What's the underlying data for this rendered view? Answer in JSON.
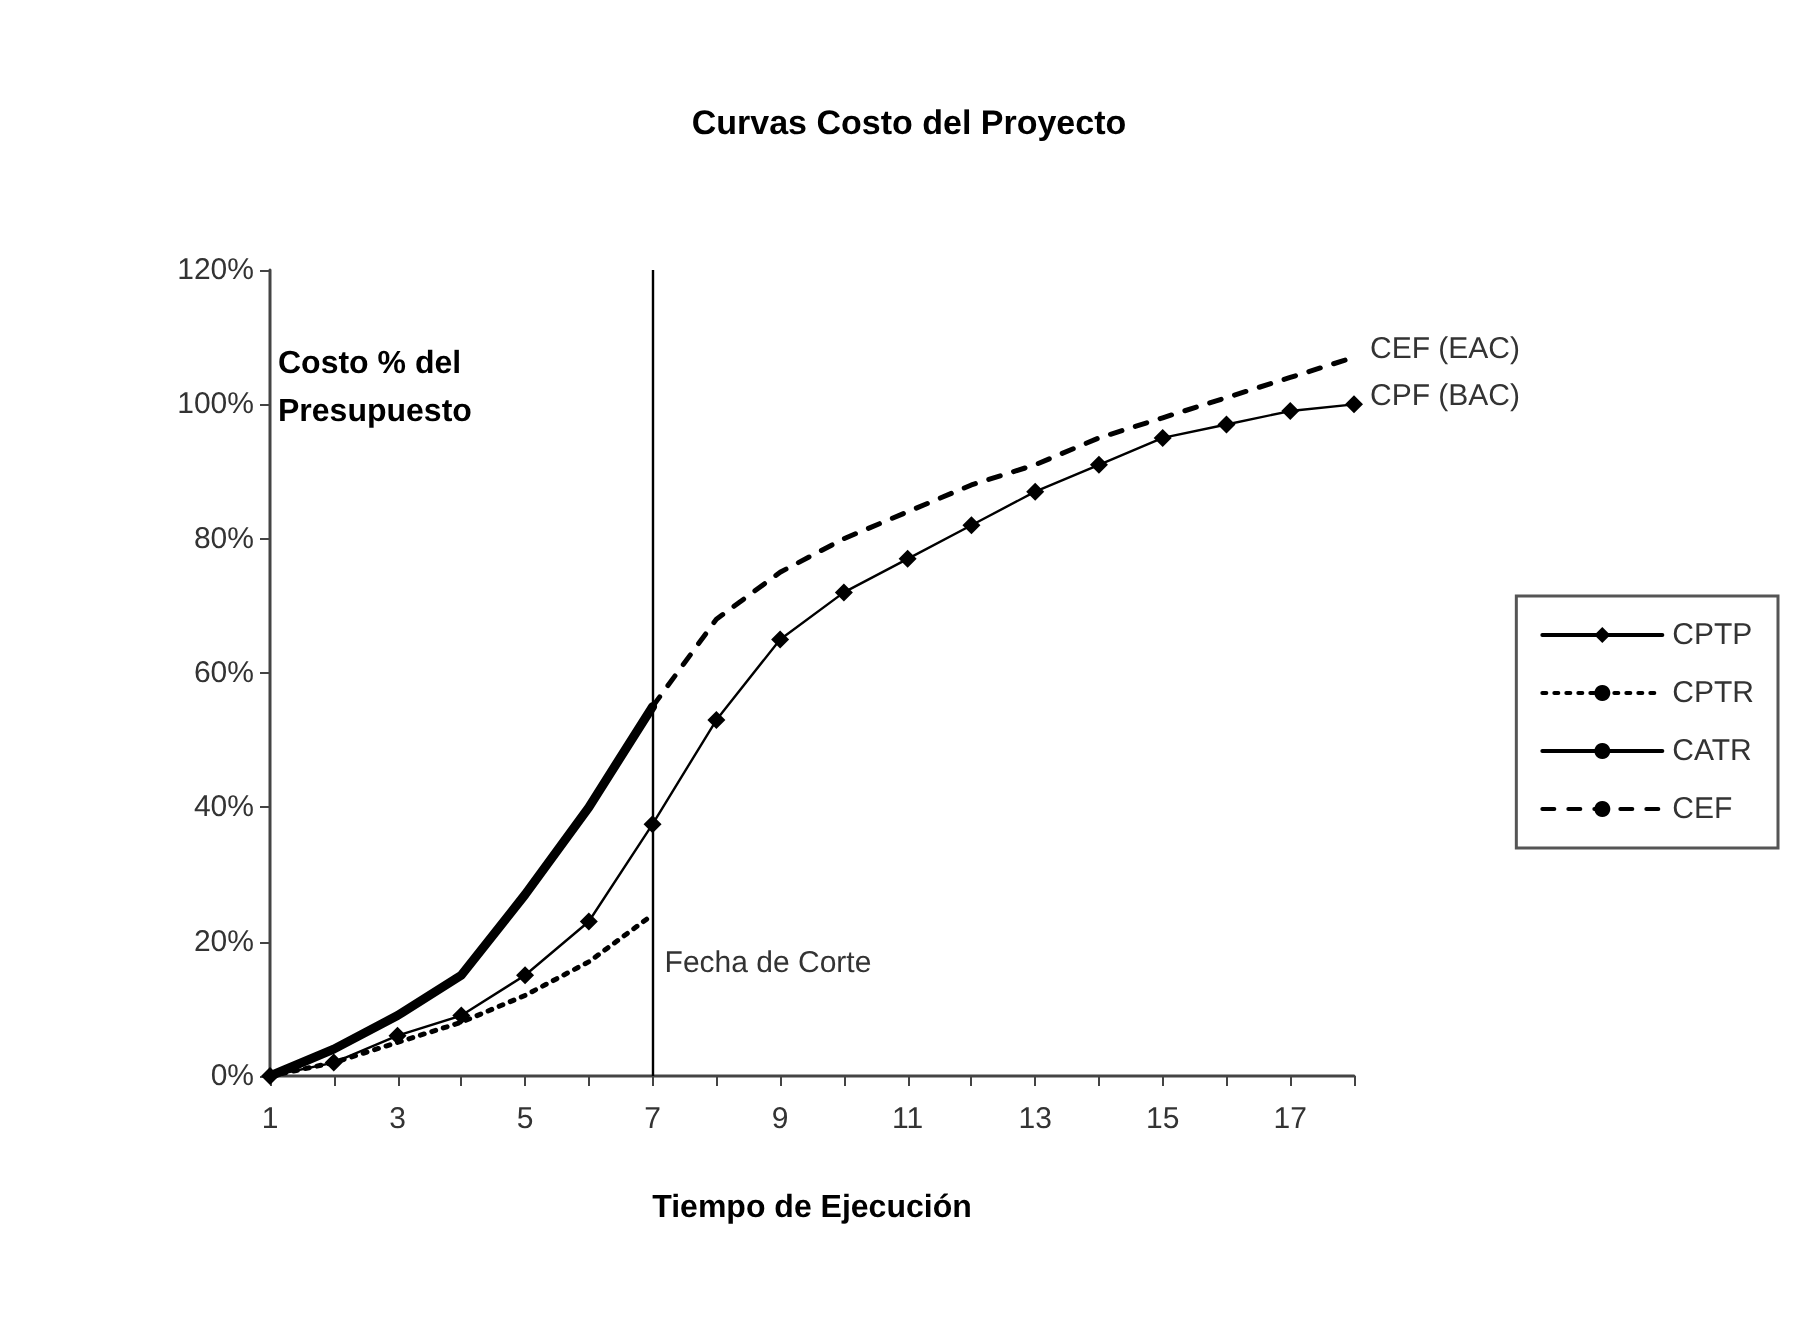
{
  "chart_data": {
    "type": "line",
    "title": "Curvas Costo del Proyecto",
    "xlabel": "Tiempo de Ejecución",
    "ylabel": "Costo % del Presupuesto",
    "x": [
      1,
      2,
      3,
      4,
      5,
      6,
      7,
      8,
      9,
      10,
      11,
      12,
      13,
      14,
      15,
      16,
      17,
      18
    ],
    "series": [
      {
        "name": "CPTP",
        "color": "#000000",
        "marker": "diamond",
        "line_style": "solid",
        "values": [
          0,
          2,
          6,
          9,
          15,
          23,
          37.5,
          53,
          65,
          72,
          77,
          82,
          87,
          91,
          95,
          97,
          99,
          100
        ]
      },
      {
        "name": "CPTR",
        "color": "#000000",
        "marker": "none",
        "line_style": "dotted",
        "values": [
          0,
          2,
          5,
          8,
          12,
          17,
          24,
          null,
          null,
          null,
          null,
          null,
          null,
          null,
          null,
          null,
          null,
          null
        ]
      },
      {
        "name": "CATR",
        "color": "#000000",
        "marker": "none",
        "line_style": "solid",
        "values": [
          0,
          4,
          9,
          15,
          27,
          40,
          55,
          null,
          null,
          null,
          null,
          null,
          null,
          null,
          null,
          null,
          null,
          null
        ]
      },
      {
        "name": "CEF",
        "color": "#000000",
        "marker": "none",
        "line_style": "dashed",
        "values": [
          null,
          null,
          null,
          null,
          null,
          null,
          55,
          68,
          75,
          80,
          84,
          88,
          91,
          95,
          98,
          101,
          104,
          107
        ]
      }
    ],
    "xlim": [
      1,
      18
    ],
    "xticks": [
      1,
      {
        "value": 2,
        "label": null
      },
      3,
      {
        "value": 4,
        "label": null
      },
      5,
      {
        "value": 6,
        "label": null
      },
      7,
      {
        "value": 8,
        "label": null
      },
      9,
      {
        "value": 10,
        "label": null
      },
      11,
      {
        "value": 12,
        "label": null
      },
      13,
      {
        "value": 14,
        "label": null
      },
      15,
      {
        "value": 16,
        "label": null
      },
      17,
      {
        "value": 18,
        "label": null
      }
    ],
    "ylim": [
      0,
      120
    ],
    "yticks": [
      {
        "value": 0,
        "label": "0%"
      },
      {
        "value": 20,
        "label": "20%"
      },
      {
        "value": 40,
        "label": "40%"
      },
      {
        "value": 60,
        "label": "60%"
      },
      {
        "value": 80,
        "label": "80%"
      },
      {
        "value": 100,
        "label": "100%"
      },
      {
        "value": 120,
        "label": "120%"
      }
    ],
    "ref_lines": [
      {
        "axis": "x",
        "value": 7,
        "label": "Fecha de Corte",
        "color": "#000000"
      }
    ],
    "annotations": [
      {
        "text": "CEF (EAC)",
        "x": 18,
        "y": 107
      },
      {
        "text": "CPF (BAC)",
        "x": 18,
        "y": 100
      }
    ],
    "grid": false,
    "legend": "right"
  }
}
